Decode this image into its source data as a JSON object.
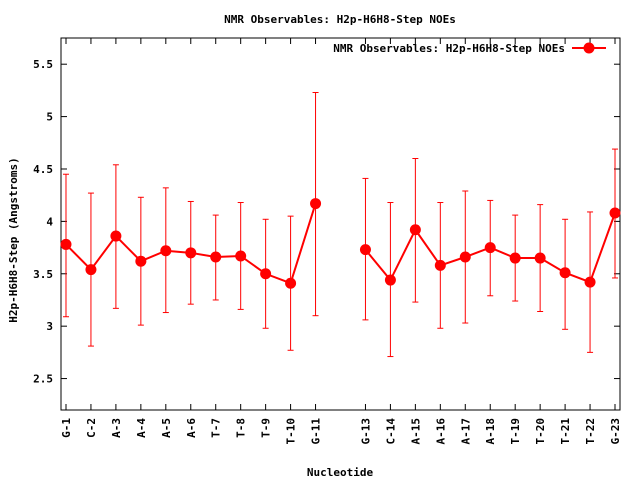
{
  "chart_data": {
    "type": "line",
    "title": "NMR Observables: H2p-H6H8-Step NOEs",
    "xlabel": "Nucleotide",
    "ylabel": "H2p-H6H8-Step (Angstroms)",
    "ylim": [
      2.2,
      5.75
    ],
    "yticks": [
      "2.5",
      "3",
      "3.5",
      "4",
      "4.5",
      "5",
      "5.5"
    ],
    "grid": false,
    "legend_position": "top-right",
    "colors": {
      "series": "#ff0000",
      "axis": "#000000"
    },
    "categories": [
      "G-1",
      "C-2",
      "A-3",
      "A-4",
      "A-5",
      "A-6",
      "T-7",
      "T-8",
      "T-9",
      "T-10",
      "G-11",
      "G-13",
      "C-14",
      "A-15",
      "A-16",
      "A-17",
      "A-18",
      "T-19",
      "T-20",
      "T-21",
      "T-22",
      "G-23"
    ],
    "x": [
      1,
      2,
      3,
      4,
      5,
      6,
      7,
      8,
      9,
      10,
      11,
      13,
      14,
      15,
      16,
      17,
      18,
      19,
      20,
      21,
      22,
      23
    ],
    "series": [
      {
        "name": "NMR Observables: H2p-H6H8-Step NOEs",
        "segments": [
          {
            "x": [
              1,
              2,
              3,
              4,
              5,
              6,
              7,
              8,
              9,
              10,
              11
            ],
            "values": [
              3.78,
              3.54,
              3.86,
              3.62,
              3.72,
              3.7,
              3.66,
              3.67,
              3.5,
              3.41,
              4.17
            ],
            "low": [
              3.09,
              2.81,
              3.17,
              3.01,
              3.13,
              3.21,
              3.25,
              3.16,
              2.98,
              2.77,
              3.1
            ],
            "high": [
              4.45,
              4.27,
              4.54,
              4.23,
              4.32,
              4.19,
              4.06,
              4.18,
              4.02,
              4.05,
              5.23
            ]
          },
          {
            "x": [
              13,
              14,
              15,
              16,
              17,
              18,
              19,
              20,
              21,
              22,
              23
            ],
            "values": [
              3.73,
              3.44,
              3.92,
              3.58,
              3.66,
              3.75,
              3.65,
              3.65,
              3.51,
              3.42,
              4.08
            ],
            "low": [
              3.06,
              2.71,
              3.23,
              2.98,
              3.03,
              3.29,
              3.24,
              3.14,
              2.97,
              2.75,
              3.46
            ],
            "high": [
              4.41,
              4.18,
              4.6,
              4.18,
              4.29,
              4.2,
              4.06,
              4.16,
              4.02,
              4.09,
              4.69
            ]
          }
        ]
      }
    ]
  }
}
